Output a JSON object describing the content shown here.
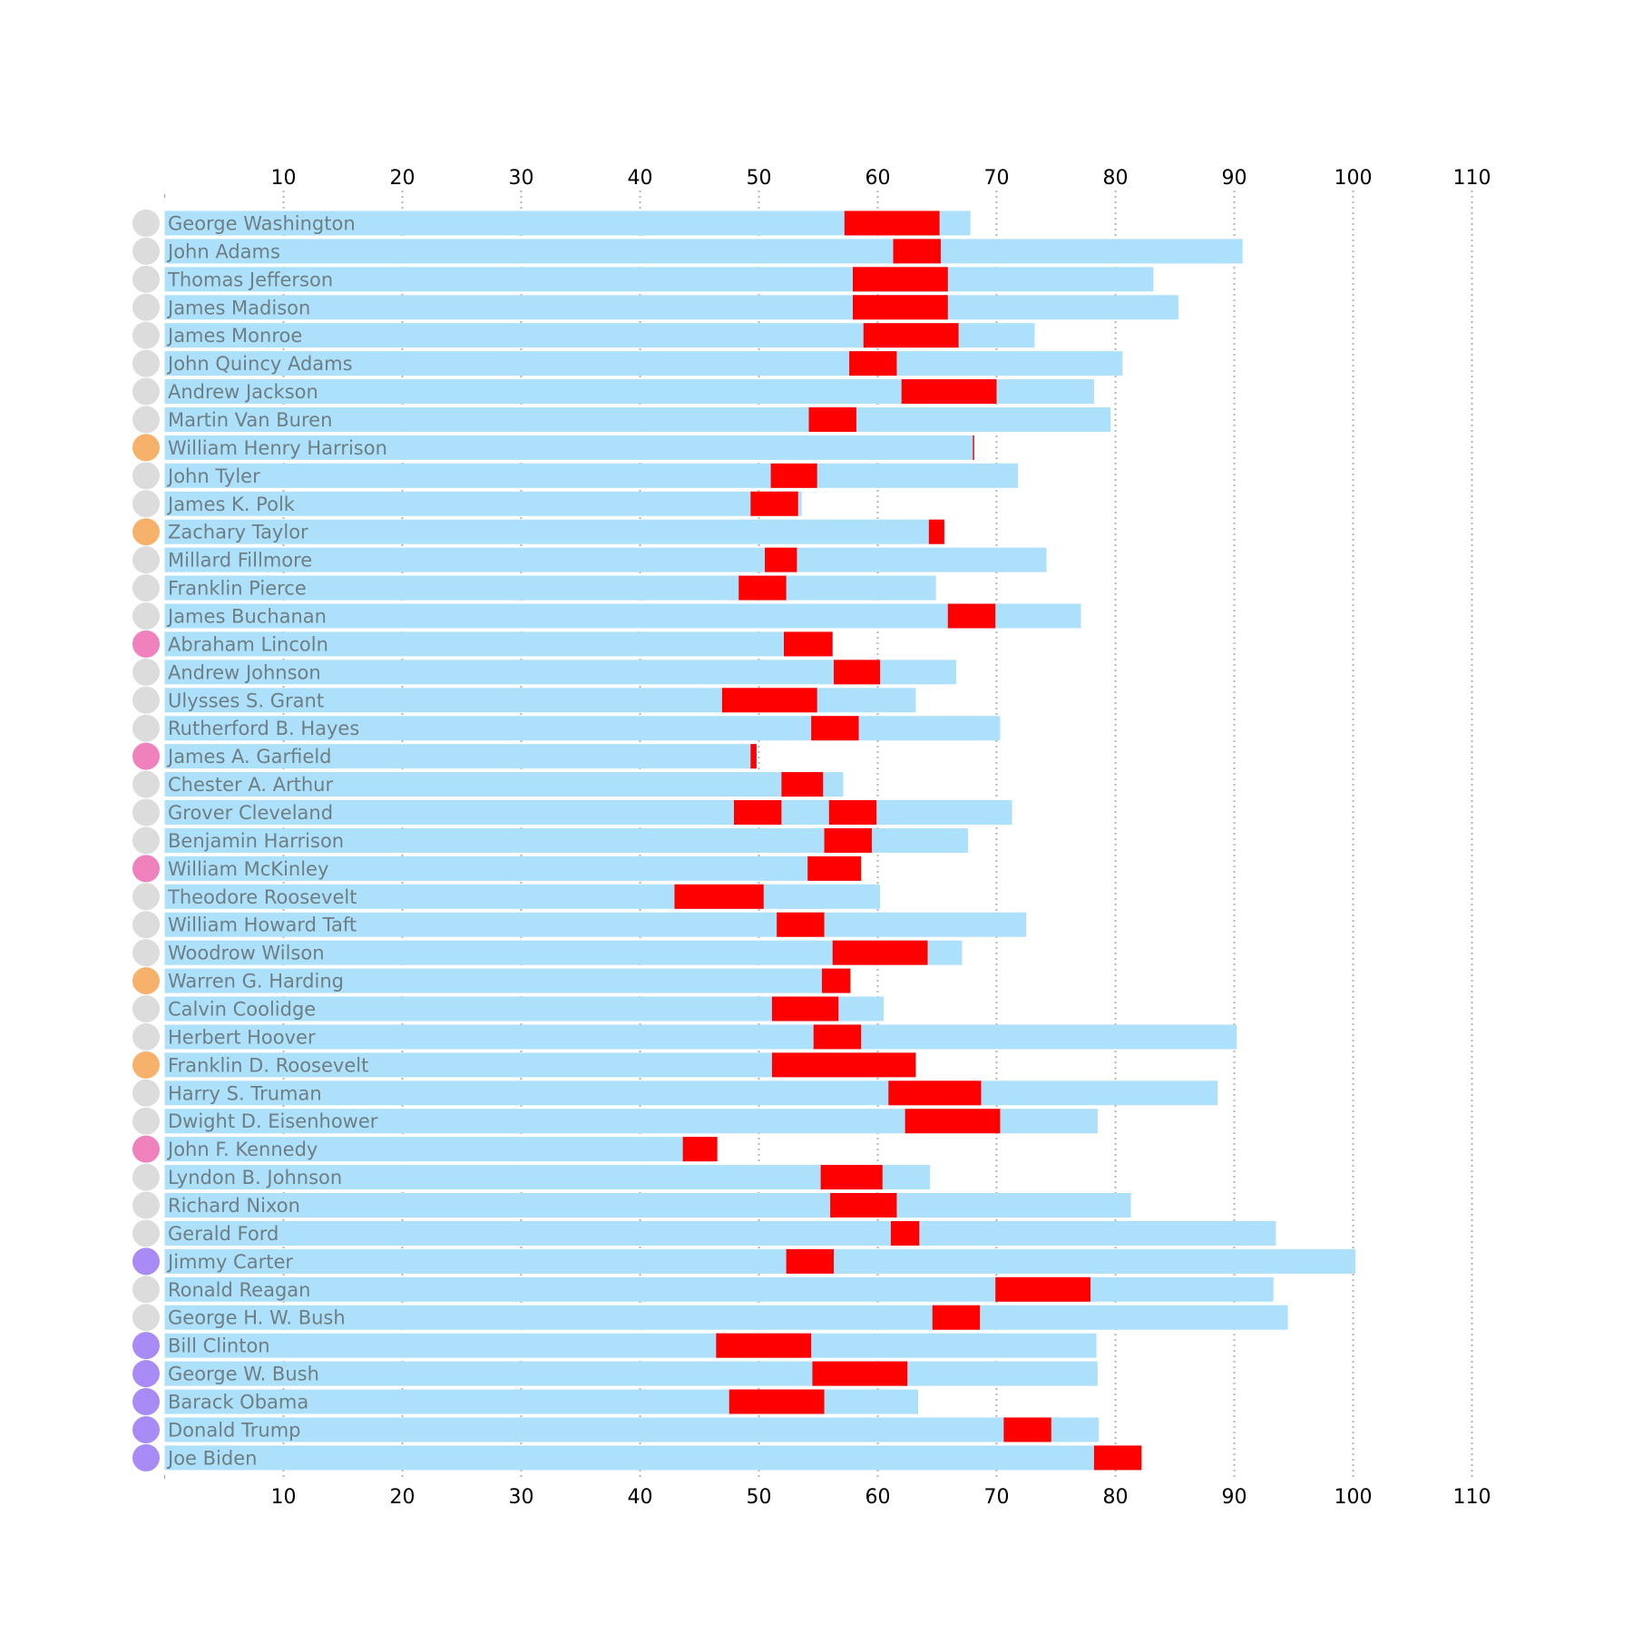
{
  "chart_data": {
    "type": "bar",
    "title": "",
    "xlabel": "",
    "ylabel": "",
    "xlim": [
      0,
      110
    ],
    "ticks": [
      10,
      20,
      30,
      40,
      50,
      60,
      70,
      80,
      90,
      100,
      110
    ],
    "grid": "vertical dotted",
    "colors": {
      "lifespan": "#ade0fa",
      "in_office": "#ff0000",
      "marker_default": "#dcdcdc",
      "marker_orange": "#f6b26b",
      "marker_pink": "#ef82bd",
      "marker_purple": "#a98bf5",
      "grid": "#b5b5b5"
    },
    "rows": [
      {
        "name": "George Washington",
        "life_end": 67.8,
        "terms": [
          [
            57.2,
            65.2
          ]
        ],
        "marker": "default"
      },
      {
        "name": "John Adams",
        "life_end": 90.7,
        "terms": [
          [
            61.3,
            65.3
          ]
        ],
        "marker": "default"
      },
      {
        "name": "Thomas Jefferson",
        "life_end": 83.2,
        "terms": [
          [
            57.9,
            65.9
          ]
        ],
        "marker": "default"
      },
      {
        "name": "James Madison",
        "life_end": 85.3,
        "terms": [
          [
            57.9,
            65.9
          ]
        ],
        "marker": "default"
      },
      {
        "name": "James Monroe",
        "life_end": 73.2,
        "terms": [
          [
            58.8,
            66.8
          ]
        ],
        "marker": "default"
      },
      {
        "name": "John Quincy Adams",
        "life_end": 80.6,
        "terms": [
          [
            57.6,
            61.6
          ]
        ],
        "marker": "default"
      },
      {
        "name": "Andrew Jackson",
        "life_end": 78.2,
        "terms": [
          [
            62.0,
            70.0
          ]
        ],
        "marker": "default"
      },
      {
        "name": "Martin Van Buren",
        "life_end": 79.6,
        "terms": [
          [
            54.2,
            58.2
          ]
        ],
        "marker": "default"
      },
      {
        "name": "William Henry Harrison",
        "life_end": 68.1,
        "terms": [
          [
            68.0,
            68.1
          ]
        ],
        "marker": "orange"
      },
      {
        "name": "John Tyler",
        "life_end": 71.8,
        "terms": [
          [
            51.0,
            54.9
          ]
        ],
        "marker": "default"
      },
      {
        "name": "James K. Polk",
        "life_end": 53.6,
        "terms": [
          [
            49.3,
            53.3
          ]
        ],
        "marker": "default"
      },
      {
        "name": "Zachary Taylor",
        "life_end": 65.6,
        "terms": [
          [
            64.3,
            65.6
          ]
        ],
        "marker": "orange"
      },
      {
        "name": "Millard Fillmore",
        "life_end": 74.2,
        "terms": [
          [
            50.5,
            53.2
          ]
        ],
        "marker": "default"
      },
      {
        "name": "Franklin Pierce",
        "life_end": 64.9,
        "terms": [
          [
            48.3,
            52.3
          ]
        ],
        "marker": "default"
      },
      {
        "name": "James Buchanan",
        "life_end": 77.1,
        "terms": [
          [
            65.9,
            69.9
          ]
        ],
        "marker": "default"
      },
      {
        "name": "Abraham Lincoln",
        "life_end": 56.2,
        "terms": [
          [
            52.1,
            56.2
          ]
        ],
        "marker": "pink"
      },
      {
        "name": "Andrew Johnson",
        "life_end": 66.6,
        "terms": [
          [
            56.3,
            60.2
          ]
        ],
        "marker": "default"
      },
      {
        "name": "Ulysses S. Grant",
        "life_end": 63.2,
        "terms": [
          [
            46.9,
            54.9
          ]
        ],
        "marker": "default"
      },
      {
        "name": "Rutherford B. Hayes",
        "life_end": 70.3,
        "terms": [
          [
            54.4,
            58.4
          ]
        ],
        "marker": "default"
      },
      {
        "name": "James A. Garfield",
        "life_end": 49.8,
        "terms": [
          [
            49.3,
            49.8
          ]
        ],
        "marker": "pink"
      },
      {
        "name": "Chester A. Arthur",
        "life_end": 57.1,
        "terms": [
          [
            51.9,
            55.4
          ]
        ],
        "marker": "default"
      },
      {
        "name": "Grover Cleveland",
        "life_end": 71.3,
        "terms": [
          [
            47.9,
            51.9
          ],
          [
            55.9,
            59.9
          ]
        ],
        "marker": "default"
      },
      {
        "name": "Benjamin Harrison",
        "life_end": 67.6,
        "terms": [
          [
            55.5,
            59.5
          ]
        ],
        "marker": "default"
      },
      {
        "name": "William McKinley",
        "life_end": 58.6,
        "terms": [
          [
            54.1,
            58.6
          ]
        ],
        "marker": "pink"
      },
      {
        "name": "Theodore Roosevelt",
        "life_end": 60.2,
        "terms": [
          [
            42.9,
            50.4
          ]
        ],
        "marker": "default"
      },
      {
        "name": "William Howard Taft",
        "life_end": 72.5,
        "terms": [
          [
            51.5,
            55.5
          ]
        ],
        "marker": "default"
      },
      {
        "name": "Woodrow Wilson",
        "life_end": 67.1,
        "terms": [
          [
            56.2,
            64.2
          ]
        ],
        "marker": "default"
      },
      {
        "name": "Warren G. Harding",
        "life_end": 57.7,
        "terms": [
          [
            55.3,
            57.7
          ]
        ],
        "marker": "orange"
      },
      {
        "name": "Calvin Coolidge",
        "life_end": 60.5,
        "terms": [
          [
            51.1,
            56.7
          ]
        ],
        "marker": "default"
      },
      {
        "name": "Herbert Hoover",
        "life_end": 90.2,
        "terms": [
          [
            54.6,
            58.6
          ]
        ],
        "marker": "default"
      },
      {
        "name": "Franklin D. Roosevelt",
        "life_end": 63.2,
        "terms": [
          [
            51.1,
            63.2
          ]
        ],
        "marker": "orange"
      },
      {
        "name": "Harry S. Truman",
        "life_end": 88.6,
        "terms": [
          [
            60.9,
            68.7
          ]
        ],
        "marker": "default"
      },
      {
        "name": "Dwight D. Eisenhower",
        "life_end": 78.5,
        "terms": [
          [
            62.3,
            70.3
          ]
        ],
        "marker": "default"
      },
      {
        "name": "John F. Kennedy",
        "life_end": 46.5,
        "terms": [
          [
            43.6,
            46.5
          ]
        ],
        "marker": "pink"
      },
      {
        "name": "Lyndon B. Johnson",
        "life_end": 64.4,
        "terms": [
          [
            55.2,
            60.4
          ]
        ],
        "marker": "default"
      },
      {
        "name": "Richard Nixon",
        "life_end": 81.3,
        "terms": [
          [
            56.0,
            61.6
          ]
        ],
        "marker": "default"
      },
      {
        "name": "Gerald Ford",
        "life_end": 93.5,
        "terms": [
          [
            61.1,
            63.5
          ]
        ],
        "marker": "default"
      },
      {
        "name": "Jimmy Carter",
        "life_end": 100.2,
        "terms": [
          [
            52.3,
            56.3
          ]
        ],
        "marker": "purple"
      },
      {
        "name": "Ronald Reagan",
        "life_end": 93.3,
        "terms": [
          [
            69.9,
            77.9
          ]
        ],
        "marker": "default"
      },
      {
        "name": "George H. W. Bush",
        "life_end": 94.5,
        "terms": [
          [
            64.6,
            68.6
          ]
        ],
        "marker": "default"
      },
      {
        "name": "Bill Clinton",
        "life_end": 78.4,
        "terms": [
          [
            46.4,
            54.4
          ]
        ],
        "marker": "purple"
      },
      {
        "name": "George W. Bush",
        "life_end": 78.5,
        "terms": [
          [
            54.5,
            62.5
          ]
        ],
        "marker": "purple"
      },
      {
        "name": "Barack Obama",
        "life_end": 63.4,
        "terms": [
          [
            47.5,
            55.5
          ]
        ],
        "marker": "purple"
      },
      {
        "name": "Donald Trump",
        "life_end": 78.6,
        "terms": [
          [
            70.6,
            74.6
          ]
        ],
        "marker": "purple"
      },
      {
        "name": "Joe Biden",
        "life_end": 82.2,
        "terms": [
          [
            78.2,
            82.2
          ]
        ],
        "marker": "purple"
      }
    ]
  }
}
